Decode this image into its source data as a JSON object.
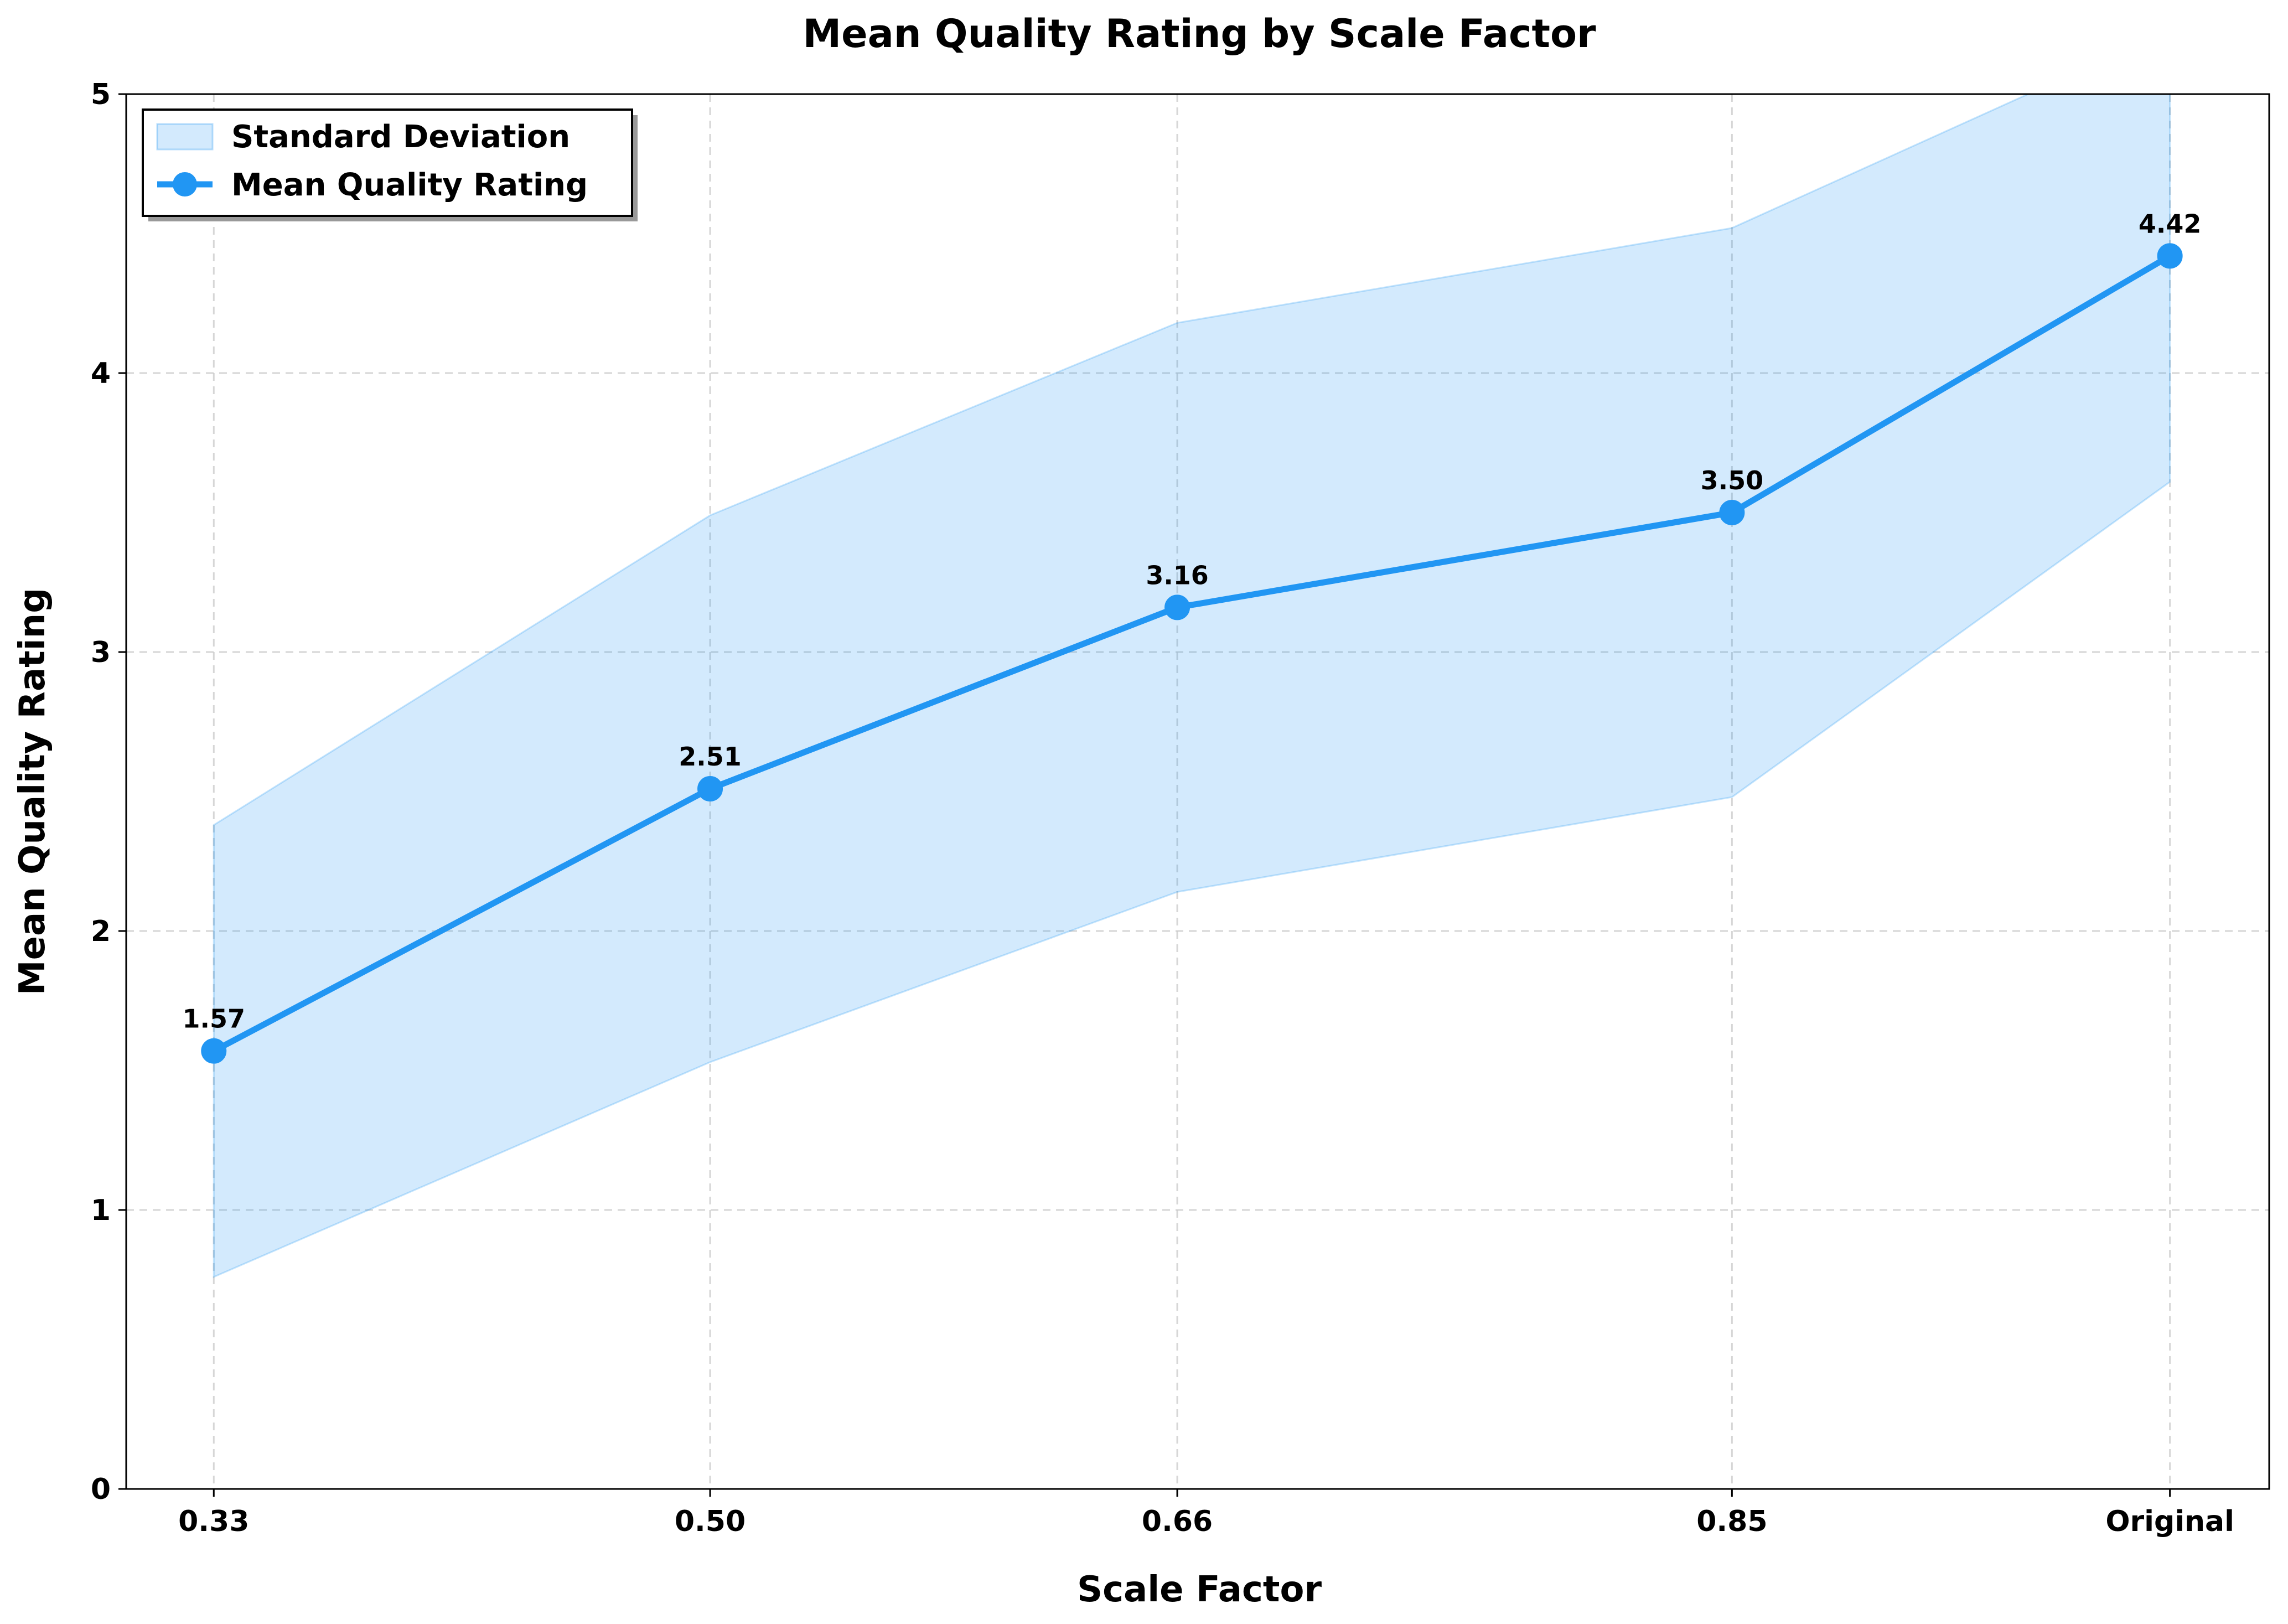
{
  "chart_data": {
    "type": "line",
    "title": "Mean Quality Rating by Scale Factor",
    "xlabel": "Scale Factor",
    "ylabel": "Mean Quality Rating",
    "categories": [
      "0.33",
      "0.50",
      "0.66",
      "0.85",
      "Original"
    ],
    "x_values": [
      0.33,
      0.5,
      0.66,
      0.85,
      1.0
    ],
    "series": [
      {
        "name": "Mean Quality Rating",
        "values": [
          1.57,
          2.51,
          3.16,
          3.5,
          4.42
        ],
        "labels": [
          "1.57",
          "2.51",
          "3.16",
          "3.50",
          "4.42"
        ],
        "color": "#2196F3"
      }
    ],
    "band": {
      "name": "Standard Deviation",
      "upper": [
        2.38,
        3.49,
        4.18,
        4.52,
        5.23
      ],
      "lower": [
        0.76,
        1.53,
        2.14,
        2.48,
        3.61
      ],
      "color": "#2196F3",
      "opacity": 0.2
    },
    "ylim": [
      0,
      5
    ],
    "xlim": [
      0.3,
      1.034
    ],
    "yticks": [
      "0",
      "1",
      "2",
      "3",
      "4",
      "5"
    ],
    "grid": true,
    "legend_placement": "top-left"
  }
}
